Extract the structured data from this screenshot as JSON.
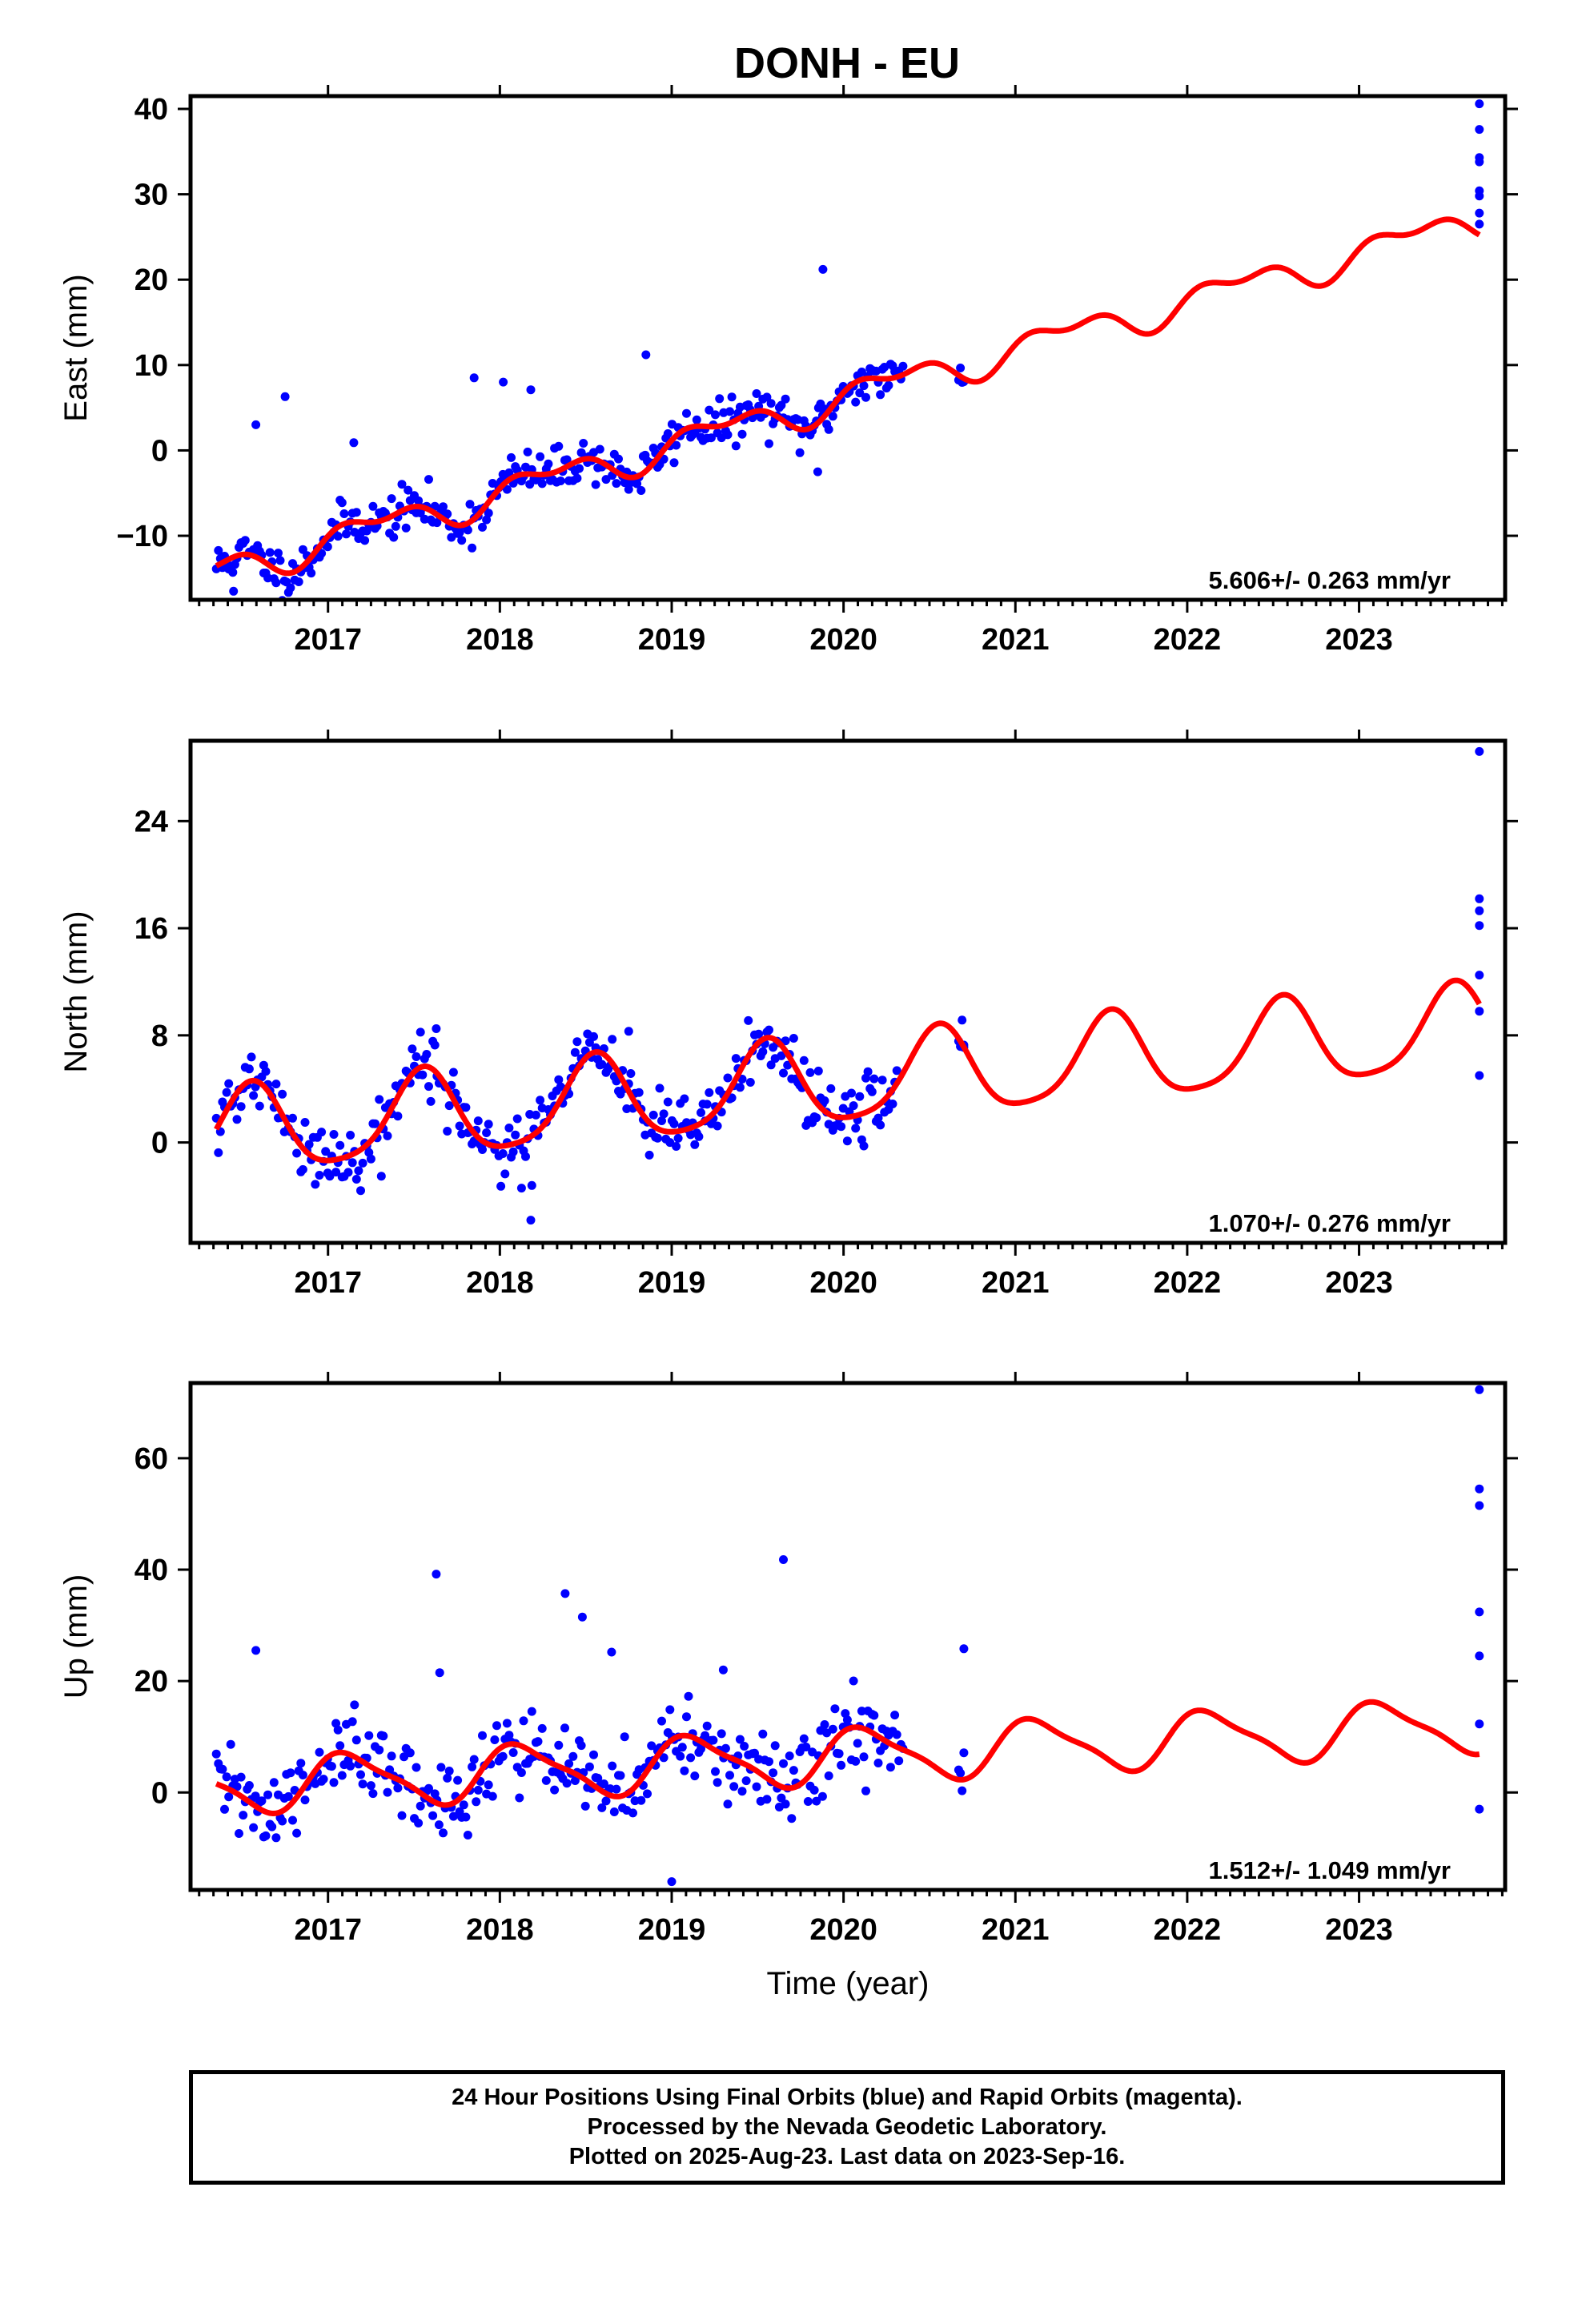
{
  "title": "DONH - EU",
  "footer": {
    "lines": [
      "24 Hour Positions Using Final Orbits (blue) and Rapid Orbits (magenta).",
      "Processed by the Nevada Geodetic Laboratory.",
      "Plotted on 2025-Aug-23. Last data on 2023-Sep-16."
    ]
  },
  "colors": {
    "points": "#0000ff",
    "model": "#ff0000",
    "frame": "#000000"
  },
  "chart_data": [
    {
      "type": "scatter",
      "component": "east",
      "ylabel": "East (mm)",
      "xlabel": "",
      "title": "DONH - EU",
      "xlim": [
        2016.2,
        2023.85
      ],
      "ylim": [
        -17.5,
        41.5
      ],
      "x_ticks": [
        2017,
        2018,
        2019,
        2020,
        2021,
        2022,
        2023
      ],
      "y_ticks": [
        -10,
        0,
        10,
        20,
        30,
        40
      ],
      "rate_label": "5.606+/- 0.263 mm/yr",
      "series": [
        {
          "kind": "observations",
          "segments": [
            {
              "x_start": 2016.35,
              "x_end": 2020.35,
              "step": 0.012,
              "noise": 1.3,
              "seed": 11
            },
            {
              "x_start": 2020.67,
              "x_end": 2020.7,
              "step": 0.01,
              "noise": 0.5,
              "seed": 12
            }
          ],
          "extra_points": [
            [
              2016.58,
              3.0
            ],
            [
              2016.75,
              6.3
            ],
            [
              2017.15,
              0.9
            ],
            [
              2017.85,
              8.5
            ],
            [
              2018.02,
              8.0
            ],
            [
              2018.18,
              7.1
            ],
            [
              2018.85,
              11.2
            ],
            [
              2019.85,
              -2.5
            ],
            [
              2019.88,
              21.2
            ],
            [
              2016.45,
              -16.5
            ],
            [
              2023.7,
              40.6
            ],
            [
              2023.7,
              37.6
            ],
            [
              2023.7,
              34.3
            ],
            [
              2023.7,
              33.8
            ],
            [
              2023.7,
              30.4
            ],
            [
              2023.7,
              29.8
            ],
            [
              2023.7,
              27.8
            ],
            [
              2023.7,
              26.5
            ]
          ]
        },
        {
          "kind": "model",
          "model": {
            "t0": 2016.35,
            "offset": -14.2,
            "rate": 5.606,
            "a1": 1.6,
            "p1": -0.2,
            "a2": 1.0,
            "p2": 1.0
          },
          "x_start": 2016.35,
          "x_end": 2023.7
        }
      ]
    },
    {
      "type": "scatter",
      "component": "north",
      "ylabel": "North (mm)",
      "xlabel": "",
      "xlim": [
        2016.2,
        2023.85
      ],
      "ylim": [
        -7.5,
        30
      ],
      "x_ticks": [
        2017,
        2018,
        2019,
        2020,
        2021,
        2022,
        2023
      ],
      "y_ticks": [
        0,
        8,
        16,
        24
      ],
      "rate_label": "1.070+/- 0.276 mm/yr",
      "series": [
        {
          "kind": "observations",
          "segments": [
            {
              "x_start": 2016.35,
              "x_end": 2020.32,
              "step": 0.012,
              "noise": 1.2,
              "seed": 21
            },
            {
              "x_start": 2020.67,
              "x_end": 2020.7,
              "step": 0.01,
              "noise": 0.8,
              "seed": 22
            }
          ],
          "extra_points": [
            [
              2017.63,
              8.5
            ],
            [
              2018.75,
              8.3
            ],
            [
              2018.18,
              -5.8
            ],
            [
              2020.7,
              7.1
            ],
            [
              2023.7,
              29.2
            ],
            [
              2023.7,
              18.2
            ],
            [
              2023.7,
              17.3
            ],
            [
              2023.7,
              16.2
            ],
            [
              2023.7,
              12.5
            ],
            [
              2023.7,
              9.8
            ],
            [
              2023.7,
              5.0
            ]
          ]
        },
        {
          "kind": "model",
          "model": {
            "t0": 2016.35,
            "offset": 0.6,
            "rate": 1.07,
            "a1": 3.2,
            "p1": -1.9,
            "a2": 0.6,
            "p2": 0.7
          },
          "x_start": 2016.35,
          "x_end": 2023.7
        }
      ]
    },
    {
      "type": "scatter",
      "component": "up",
      "ylabel": "Up (mm)",
      "xlabel": "Time (year)",
      "xlim": [
        2016.2,
        2023.85
      ],
      "ylim": [
        -17.5,
        73.5
      ],
      "x_ticks": [
        2017,
        2018,
        2019,
        2020,
        2021,
        2022,
        2023
      ],
      "y_ticks": [
        0,
        20,
        40,
        60
      ],
      "rate_label": "1.512+/- 1.049 mm/yr",
      "series": [
        {
          "kind": "observations",
          "segments": [
            {
              "x_start": 2016.35,
              "x_end": 2020.35,
              "step": 0.012,
              "noise": 3.8,
              "seed": 31
            },
            {
              "x_start": 2020.67,
              "x_end": 2020.7,
              "step": 0.01,
              "noise": 2.5,
              "seed": 32
            }
          ],
          "extra_points": [
            [
              2016.58,
              25.5
            ],
            [
              2017.63,
              39.2
            ],
            [
              2017.65,
              21.5
            ],
            [
              2018.38,
              35.7
            ],
            [
              2018.48,
              31.5
            ],
            [
              2018.65,
              25.2
            ],
            [
              2019.3,
              22.0
            ],
            [
              2019.65,
              41.8
            ],
            [
              2019.0,
              -16.0
            ],
            [
              2020.7,
              25.8
            ],
            [
              2023.7,
              72.3
            ],
            [
              2023.7,
              54.5
            ],
            [
              2023.7,
              51.5
            ],
            [
              2023.7,
              32.4
            ],
            [
              2023.7,
              24.5
            ],
            [
              2023.7,
              12.3
            ],
            [
              2023.7,
              -3.0
            ]
          ]
        },
        {
          "kind": "model",
          "model": {
            "t0": 2016.35,
            "offset": 1.0,
            "rate": 1.512,
            "a1": 4.7,
            "p1": 0.75,
            "a2": 1.2,
            "p2": 1.6
          },
          "x_start": 2016.35,
          "x_end": 2023.7
        }
      ]
    }
  ]
}
